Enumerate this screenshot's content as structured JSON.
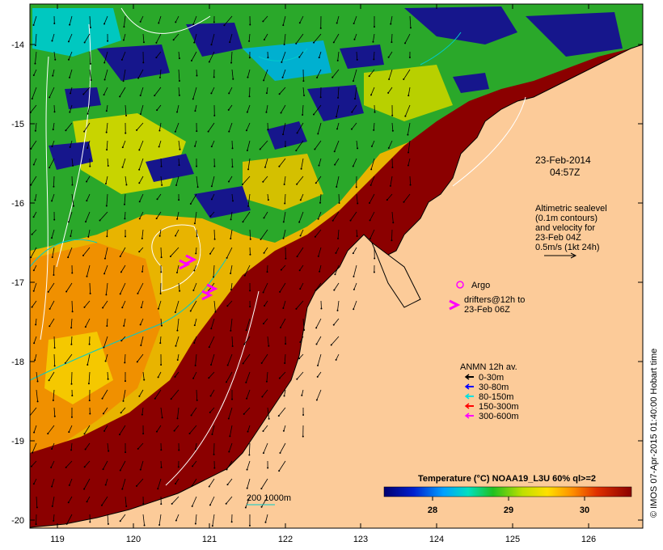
{
  "map": {
    "x_ticks": [
      "119",
      "120",
      "121",
      "122",
      "123",
      "124",
      "125",
      "126"
    ],
    "y_ticks": [
      "-14",
      "-15",
      "-16",
      "-17",
      "-18",
      "-19",
      "-20"
    ]
  },
  "annotations": {
    "date": "23-Feb-2014",
    "time": "04:57Z",
    "altimetry_lines": [
      "Altimetric sealevel",
      "(0.1m contours)",
      "and velocity for",
      "23-Feb 04Z",
      "0.5m/s (1kt 24h)"
    ],
    "argo_label": "Argo",
    "drifter_lines": [
      "drifters@12h to",
      "23-Feb 06Z"
    ],
    "anmn_title": "ANMN 12h av.",
    "anmn_legend": [
      {
        "label": "0-30m",
        "color": "#000000"
      },
      {
        "label": "30-80m",
        "color": "#0000ff"
      },
      {
        "label": "80-150m",
        "color": "#00e0e0"
      },
      {
        "label": "150-300m",
        "color": "#ff0000"
      },
      {
        "label": "300-600m",
        "color": "#ff00ff"
      }
    ],
    "isobath_label": "200  1000m"
  },
  "colorbar": {
    "title": "Temperature (°C) NOAA19_L3U 60% ql>=2",
    "ticks": [
      "28",
      "29",
      "30"
    ]
  },
  "credit": "© IMOS 07-Apr-2015 01:40:00 Hobart time",
  "colors": {
    "land": "#fccb99",
    "hot": "#8b0000",
    "cloud": "#16168c",
    "isobath": "#00cccc"
  }
}
